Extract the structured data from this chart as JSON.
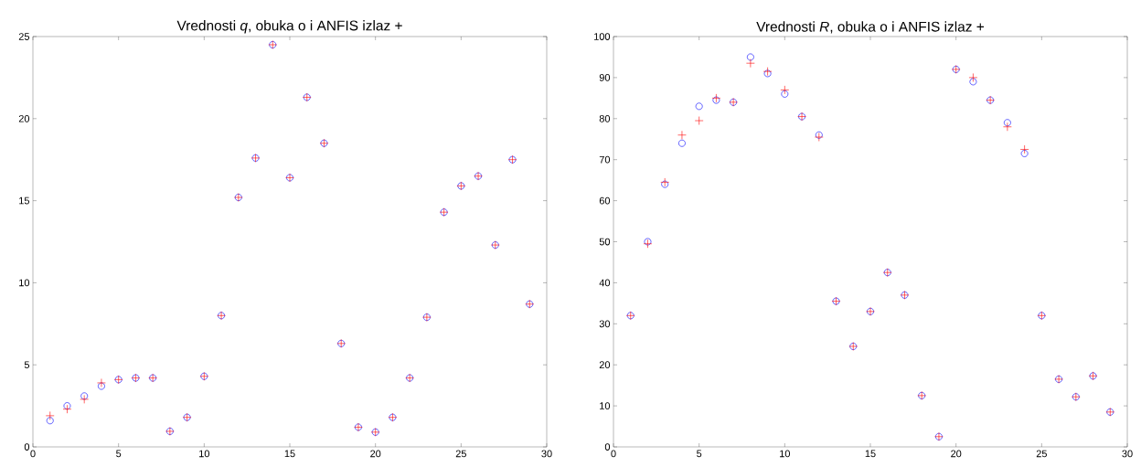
{
  "chart_data": [
    {
      "type": "scatter",
      "title": "Vrednosti *q*, obuka o i ANFIS izlaz +",
      "x": [
        1,
        2,
        3,
        4,
        5,
        6,
        7,
        8,
        9,
        10,
        11,
        12,
        13,
        14,
        15,
        16,
        17,
        18,
        19,
        20,
        21,
        22,
        23,
        24,
        25,
        26,
        27,
        28,
        29
      ],
      "series": [
        {
          "color": "#0000ff",
          "marker": "circle",
          "values": [
            1.6,
            2.5,
            3.1,
            3.7,
            4.1,
            4.2,
            4.2,
            0.95,
            1.8,
            4.3,
            8.0,
            15.2,
            17.6,
            24.5,
            16.4,
            21.3,
            18.5,
            6.3,
            1.2,
            0.9,
            1.8,
            4.2,
            7.9,
            14.3,
            15.9,
            16.5,
            12.3,
            17.5,
            8.7
          ]
        },
        {
          "color": "#ff0000",
          "marker": "cross",
          "values": [
            1.9,
            2.3,
            2.9,
            3.9,
            4.1,
            4.2,
            4.2,
            0.95,
            1.8,
            4.3,
            8.0,
            15.2,
            17.6,
            24.5,
            16.4,
            21.3,
            18.5,
            6.3,
            1.2,
            0.9,
            1.8,
            4.2,
            7.9,
            14.3,
            15.9,
            16.5,
            12.3,
            17.5,
            8.7
          ]
        }
      ],
      "xlim": [
        0,
        30
      ],
      "ylim": [
        0,
        25
      ],
      "xticks": [
        0,
        5,
        10,
        15,
        20,
        25,
        30
      ],
      "yticks": [
        0,
        5,
        10,
        15,
        20,
        25
      ],
      "grid": false
    },
    {
      "type": "scatter",
      "title": "Vrednosti *R*, obuka o i ANFIS izlaz +",
      "x": [
        1,
        2,
        3,
        4,
        5,
        6,
        7,
        8,
        9,
        10,
        11,
        12,
        13,
        14,
        15,
        16,
        17,
        18,
        19,
        20,
        21,
        22,
        23,
        24,
        25,
        26,
        27,
        28,
        29
      ],
      "series": [
        {
          "color": "#0000ff",
          "marker": "circle",
          "values": [
            32,
            50,
            64,
            74,
            83,
            84.5,
            84,
            95,
            91,
            86,
            80.5,
            76,
            35.5,
            24.5,
            33,
            42.5,
            37,
            12.5,
            2.5,
            92,
            89,
            84.5,
            79,
            71.5,
            32,
            16.5,
            12.2,
            17.3,
            8.5
          ]
        },
        {
          "color": "#ff0000",
          "marker": "cross",
          "values": [
            32,
            49.5,
            64.5,
            76,
            79.5,
            85,
            84,
            93.5,
            91.5,
            87,
            80.5,
            75.5,
            35.5,
            24.5,
            33,
            42.5,
            37,
            12.5,
            2.5,
            92,
            90,
            84.5,
            78,
            72.5,
            32,
            16.5,
            12.2,
            17.3,
            8.5
          ]
        }
      ],
      "xlim": [
        0,
        30
      ],
      "ylim": [
        0,
        100
      ],
      "xticks": [
        0,
        5,
        10,
        15,
        20,
        25,
        30
      ],
      "yticks": [
        0,
        10,
        20,
        30,
        40,
        50,
        60,
        70,
        80,
        90,
        100
      ],
      "grid": false
    }
  ]
}
